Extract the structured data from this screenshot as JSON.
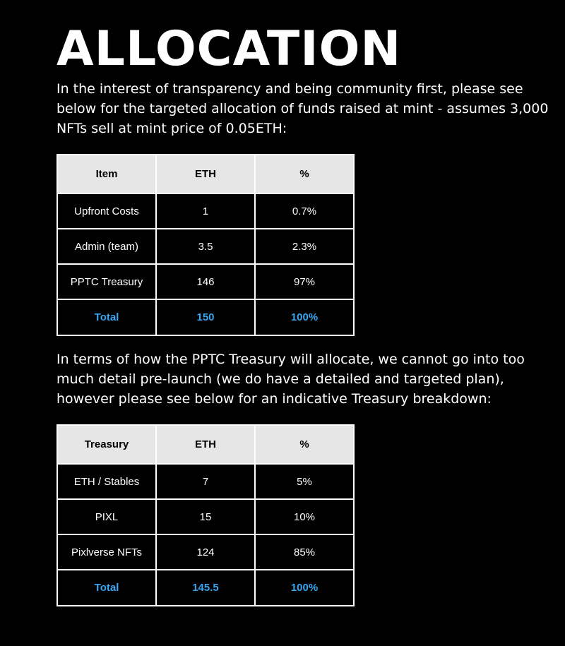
{
  "title": "ALLOCATION",
  "intro": "In the interest of transparency and being community first, please see below for the targeted allocation of funds raised at mint - assumes 3,000 NFTs sell at mint price of 0.05ETH:",
  "allocation_table": {
    "headers": [
      "Item",
      "ETH",
      "%"
    ],
    "rows": [
      [
        "Upfront Costs",
        "1",
        "0.7%"
      ],
      [
        "Admin (team)",
        "3.5",
        "2.3%"
      ],
      [
        "PPTC Treasury",
        "146",
        "97%"
      ]
    ],
    "total": [
      "Total",
      "150",
      "100%"
    ]
  },
  "treasury_intro": "In terms of how the PPTC Treasury will allocate, we cannot go into too much detail pre-launch (we do have a detailed and targeted plan), however please see below for an indicative Treasury breakdown:",
  "treasury_table": {
    "headers": [
      "Treasury",
      "ETH",
      "%"
    ],
    "rows": [
      [
        "ETH / Stables",
        "7",
        "5%"
      ],
      [
        "PIXL",
        "15",
        "10%"
      ],
      [
        "Pixlverse NFTs",
        "124",
        "85%"
      ]
    ],
    "total": [
      "Total",
      "145.5",
      "100%"
    ]
  },
  "colors": {
    "background": "#000000",
    "text": "#ffffff",
    "header_bg": "#e6e6e6",
    "total_text": "#38a6f2"
  }
}
